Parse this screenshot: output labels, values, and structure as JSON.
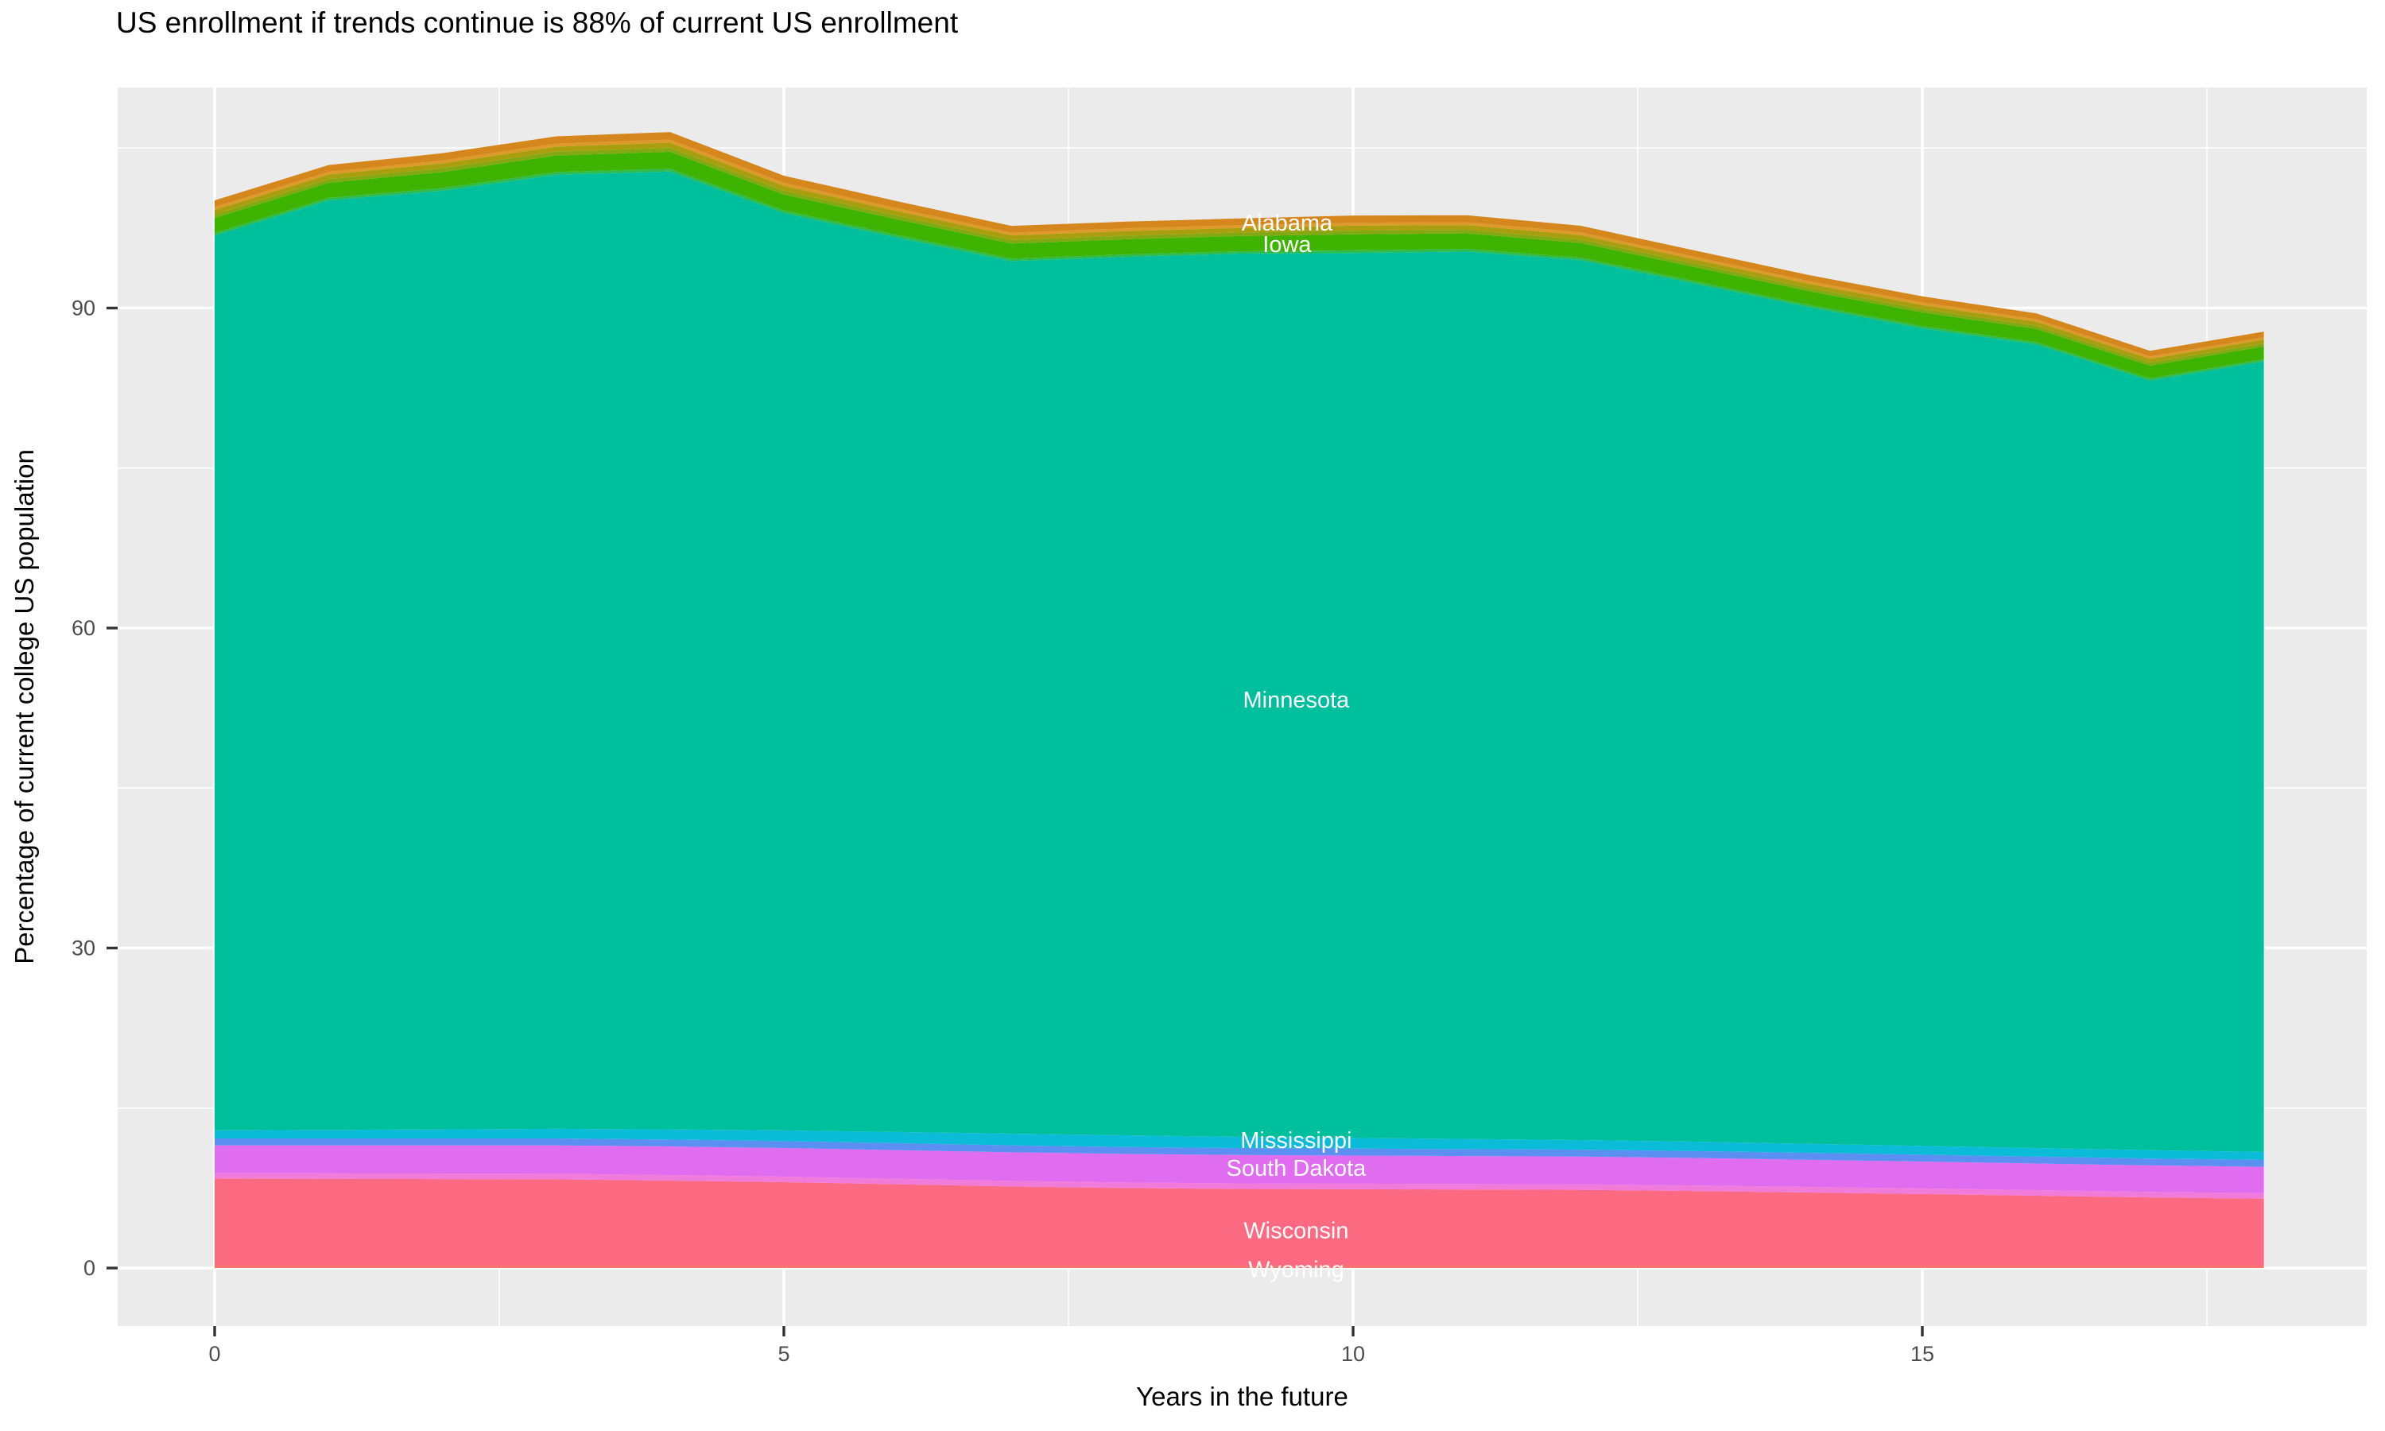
{
  "title": "US enrollment if trends continue is 88% of current US enrollment",
  "colors": {
    "panel_background": "#EBEBEB",
    "grid_line": "#FFFFFF",
    "tick_mark": "#333333",
    "tick_label": "#4D4D4D",
    "axis_title": "#000000",
    "area_label_text": "#FFFFFF"
  },
  "axes": {
    "x": {
      "label": "Years in the future",
      "tick_labels": [
        "0",
        "5",
        "10",
        "15"
      ],
      "tick_values": [
        0,
        5,
        10,
        15
      ],
      "minor_tick_values": [
        2.5,
        7.5,
        12.5,
        17.5
      ]
    },
    "y": {
      "label": "Percentage of current college US population",
      "tick_labels": [
        "0",
        "30",
        "60",
        "90"
      ],
      "tick_values": [
        0,
        30,
        60,
        90
      ],
      "minor_tick_values": [
        15,
        45,
        75,
        105
      ]
    }
  },
  "chart_data": {
    "type": "area",
    "stacked": true,
    "title": "US enrollment if trends continue is 88% of current US enrollment",
    "xlabel": "Years in the future",
    "ylabel": "Percentage of current college US population",
    "x": [
      0,
      1,
      2,
      3,
      4,
      5,
      6,
      7,
      8,
      9,
      10,
      11,
      12,
      13,
      14,
      15,
      16,
      17,
      18
    ],
    "xlim": [
      -0.9,
      18.9
    ],
    "ylim": [
      -5.4,
      110.7
    ],
    "grid": true,
    "legend_position": "none",
    "total_top_pct": [
      100.1,
      103.4,
      104.5,
      106.1,
      106.5,
      102.4,
      100.0,
      97.7,
      98.1,
      98.4,
      98.7,
      98.7,
      97.7,
      95.4,
      93.1,
      91.1,
      89.5,
      86.0,
      87.8
    ],
    "series": [
      {
        "name": "Wyoming",
        "labeled": true,
        "color": "#F8766D",
        "values": [
          0.22,
          0.22,
          0.22,
          0.22,
          0.22,
          0.22,
          0.22,
          0.22,
          0.22,
          0.22,
          0.22,
          0.22,
          0.22,
          0.22,
          0.22,
          0.22,
          0.22,
          0.22,
          0.22
        ]
      },
      {
        "name": "Wisconsin",
        "labeled": true,
        "color": "#FB6A80",
        "values": [
          8.16,
          8.14,
          8.12,
          8.1,
          7.98,
          7.83,
          7.63,
          7.43,
          7.28,
          7.2,
          7.17,
          7.14,
          7.11,
          7.0,
          6.86,
          6.72,
          6.56,
          6.4,
          6.28
        ]
      },
      {
        "name": "unlabeled thin band (pink blend)",
        "labeled": false,
        "color": "#F07BDB",
        "values": [
          0.52,
          0.52,
          0.52,
          0.52,
          0.52,
          0.52,
          0.52,
          0.52,
          0.52,
          0.52,
          0.52,
          0.52,
          0.52,
          0.52,
          0.52,
          0.52,
          0.52,
          0.52,
          0.52
        ]
      },
      {
        "name": "South Dakota",
        "labeled": true,
        "color": "#E06CF0",
        "values": [
          2.6,
          2.62,
          2.64,
          2.66,
          2.68,
          2.68,
          2.68,
          2.68,
          2.68,
          2.66,
          2.64,
          2.62,
          2.6,
          2.58,
          2.55,
          2.52,
          2.5,
          2.48,
          2.47
        ]
      },
      {
        "name": "unlabeled thin band (blue blend)",
        "labeled": false,
        "color": "#5C8FF2",
        "values": [
          0.65,
          0.65,
          0.65,
          0.65,
          0.65,
          0.65,
          0.65,
          0.65,
          0.65,
          0.65,
          0.65,
          0.65,
          0.65,
          0.65,
          0.65,
          0.65,
          0.65,
          0.65,
          0.65
        ]
      },
      {
        "name": "Mississippi",
        "labeled": true,
        "color": "#0BBCD8",
        "values": [
          0.75,
          0.8,
          0.85,
          0.9,
          0.95,
          1.0,
          1.05,
          1.1,
          1.1,
          1.05,
          1.0,
          0.95,
          0.9,
          0.88,
          0.85,
          0.82,
          0.8,
          0.78,
          0.75
        ]
      },
      {
        "name": "Minnesota",
        "labeled": true,
        "color": "#00BF9C",
        "values": [
          83.9,
          87.15,
          88.0,
          89.45,
          89.8,
          86.0,
          83.85,
          81.8,
          82.35,
          82.8,
          82.96,
          83.2,
          82.5,
          80.45,
          78.45,
          76.65,
          75.35,
          72.15,
          74.11
        ]
      },
      {
        "name": "unlabeled thin band (light green blend)",
        "labeled": false,
        "color": "#2EBC4E",
        "values": [
          0.23,
          0.23,
          0.25,
          0.25,
          0.26,
          0.25,
          0.24,
          0.23,
          0.23,
          0.23,
          0.25,
          0.24,
          0.22,
          0.22,
          0.21,
          0.21,
          0.2,
          0.2,
          0.2
        ]
      },
      {
        "name": "Iowa",
        "labeled": true,
        "color": "#3FB400",
        "values": [
          1.42,
          1.42,
          1.5,
          1.55,
          1.59,
          1.5,
          1.46,
          1.42,
          1.42,
          1.42,
          1.5,
          1.46,
          1.38,
          1.33,
          1.29,
          1.29,
          1.25,
          1.2,
          1.2
        ]
      },
      {
        "name": "unlabeled thin band (yellow-green blend)",
        "labeled": false,
        "color": "#84A812",
        "values": [
          0.33,
          0.33,
          0.35,
          0.36,
          0.37,
          0.35,
          0.34,
          0.33,
          0.33,
          0.33,
          0.35,
          0.34,
          0.32,
          0.31,
          0.3,
          0.3,
          0.29,
          0.28,
          0.28
        ]
      },
      {
        "name": "unlabeled thin band (olive blend)",
        "labeled": false,
        "color": "#A89E0E",
        "values": [
          0.43,
          0.43,
          0.46,
          0.47,
          0.48,
          0.46,
          0.44,
          0.43,
          0.43,
          0.43,
          0.46,
          0.44,
          0.42,
          0.4,
          0.39,
          0.39,
          0.38,
          0.36,
          0.36
        ]
      },
      {
        "name": "unlabeled thin band (light orange blend)",
        "labeled": false,
        "color": "#DD9A2B",
        "values": [
          0.26,
          0.26,
          0.28,
          0.29,
          0.3,
          0.28,
          0.27,
          0.26,
          0.26,
          0.26,
          0.28,
          0.27,
          0.26,
          0.25,
          0.24,
          0.24,
          0.23,
          0.22,
          0.22
        ]
      },
      {
        "name": "Alabama",
        "labeled": true,
        "color": "#D5861D",
        "values": [
          0.63,
          0.63,
          0.67,
          0.68,
          0.7,
          0.67,
          0.65,
          0.63,
          0.63,
          0.63,
          0.67,
          0.65,
          0.61,
          0.59,
          0.57,
          0.57,
          0.55,
          0.53,
          0.53
        ]
      }
    ],
    "area_labels": [
      {
        "text": "Alabama",
        "x_year": 9.42,
        "y_pct": 98.0
      },
      {
        "text": "Iowa",
        "x_year": 9.42,
        "y_pct": 96.0
      },
      {
        "text": "Minnesota",
        "x_year": 9.5,
        "y_pct": 53.3
      },
      {
        "text": "Mississippi",
        "x_year": 9.5,
        "y_pct": 12.0
      },
      {
        "text": "South Dakota",
        "x_year": 9.5,
        "y_pct": 9.4
      },
      {
        "text": "Wisconsin",
        "x_year": 9.5,
        "y_pct": 3.55
      },
      {
        "text": "Wyoming",
        "x_year": 9.5,
        "y_pct": -0.1
      }
    ]
  }
}
